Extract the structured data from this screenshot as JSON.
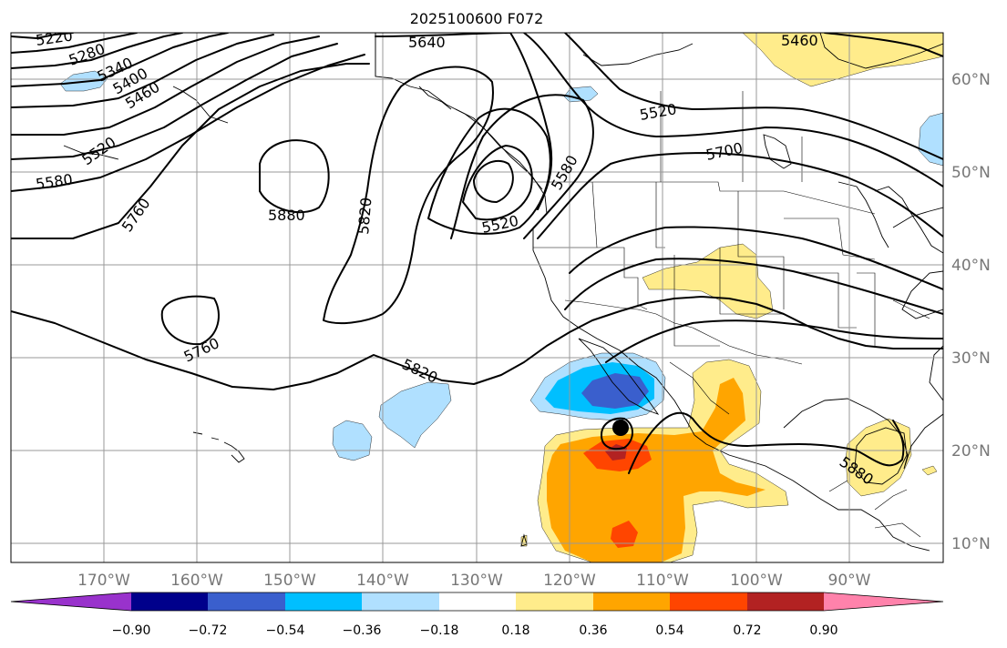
{
  "title": "2025100600 F072",
  "lon_labels": [
    "170°W",
    "160°W",
    "150°W",
    "140°W",
    "130°W",
    "120°W",
    "110°W",
    "100°W",
    "90°W"
  ],
  "lat_labels": [
    "60°N",
    "50°N",
    "40°N",
    "30°N",
    "20°N",
    "10°N"
  ],
  "colorbar": {
    "ticks": [
      "−0.90",
      "−0.72",
      "−0.54",
      "−0.36",
      "−0.18",
      "0.18",
      "0.36",
      "0.54",
      "0.72",
      "0.90"
    ],
    "colors": [
      "#9932cc",
      "#00008b",
      "#3a5fcd",
      "#00bfff",
      "#b0e0ff",
      "#ffffff",
      "#ffec8b",
      "#ffa500",
      "#ff4500",
      "#b22222",
      "#ff82ab"
    ]
  },
  "contour_labels": {
    "c5220": "5220",
    "c5280": "5280",
    "c5340": "5340",
    "c5400": "5400",
    "c5460_w": "5460",
    "c5520_w": "5520",
    "c5580_w": "5580",
    "c5760_w": "5760",
    "c5880_w": "5880",
    "c5820_c": "5820",
    "c5640": "5640",
    "c5460_ne": "5460",
    "c5520_ne": "5520",
    "c5700": "5700",
    "c5580_c": "5580",
    "c5520_c": "5520",
    "c5760_s": "5760",
    "c5820_s": "5820",
    "c5880_e": "5880"
  },
  "marker": {
    "type": "storm-center",
    "lon": -114.5,
    "lat": 22.5
  }
}
